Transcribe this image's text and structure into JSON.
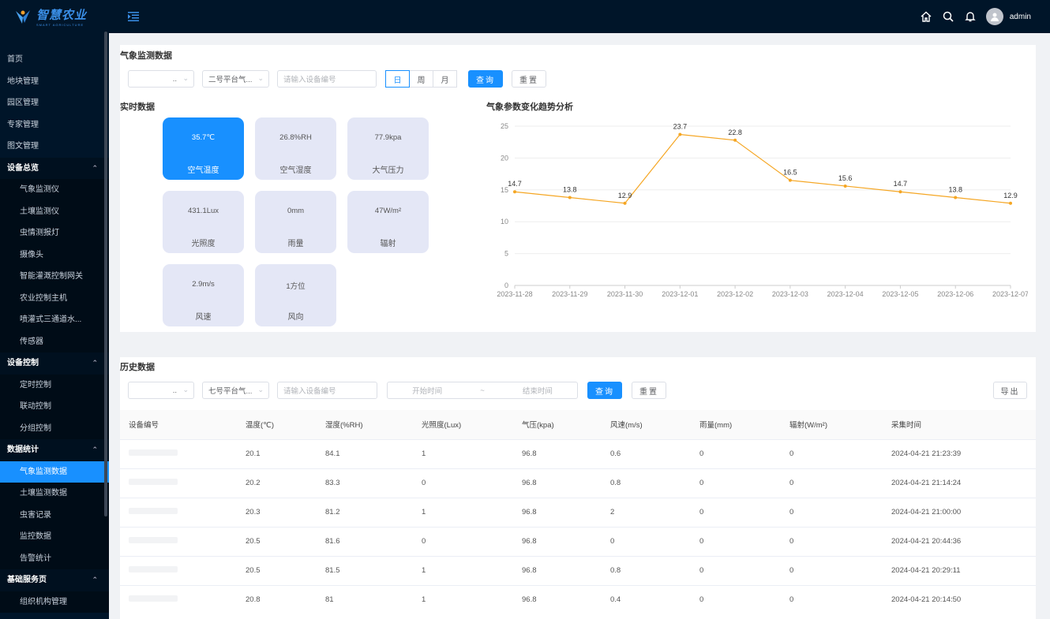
{
  "app": {
    "logo_title": "智慧农业",
    "logo_sub": "SMART AGRICULTURE",
    "user": "admin"
  },
  "sidebar": {
    "items": [
      {
        "label": "首页",
        "type": "item"
      },
      {
        "label": "地块管理",
        "type": "item"
      },
      {
        "label": "园区管理",
        "type": "item"
      },
      {
        "label": "专家管理",
        "type": "item"
      },
      {
        "label": "图文管理",
        "type": "item"
      },
      {
        "label": "设备总览",
        "type": "group"
      },
      {
        "label": "气象监测仪",
        "type": "sub"
      },
      {
        "label": "土壤监测仪",
        "type": "sub"
      },
      {
        "label": "虫情测报灯",
        "type": "sub"
      },
      {
        "label": "摄像头",
        "type": "sub"
      },
      {
        "label": "智能灌溉控制网关",
        "type": "sub"
      },
      {
        "label": "农业控制主机",
        "type": "sub"
      },
      {
        "label": "喷灌式三通道水...",
        "type": "sub"
      },
      {
        "label": "传感器",
        "type": "sub"
      },
      {
        "label": "设备控制",
        "type": "group"
      },
      {
        "label": "定时控制",
        "type": "sub"
      },
      {
        "label": "联动控制",
        "type": "sub"
      },
      {
        "label": "分组控制",
        "type": "sub"
      },
      {
        "label": "数据统计",
        "type": "group"
      },
      {
        "label": "气象监测数据",
        "type": "sub",
        "active": true
      },
      {
        "label": "土壤监测数据",
        "type": "sub"
      },
      {
        "label": "虫害记录",
        "type": "sub"
      },
      {
        "label": "监控数据",
        "type": "sub"
      },
      {
        "label": "告警统计",
        "type": "sub"
      },
      {
        "label": "基础服务页",
        "type": "group"
      },
      {
        "label": "组织机构管理",
        "type": "sub"
      }
    ]
  },
  "top": {
    "title": "气象监测数据",
    "select1": "..",
    "select2": "二号平台气...",
    "device_placeholder": "请输入设备编号",
    "seg": [
      "日",
      "周",
      "月"
    ],
    "query": "查询",
    "reset": "重置",
    "realtime_title": "实时数据",
    "cards": [
      {
        "value": "35.7℃",
        "label": "空气温度",
        "active": true
      },
      {
        "value": "26.8%RH",
        "label": "空气湿度"
      },
      {
        "value": "77.9kpa",
        "label": "大气压力"
      },
      {
        "value": "431.1Lux",
        "label": "光照度"
      },
      {
        "value": "0mm",
        "label": "雨量"
      },
      {
        "value": "47W/m²",
        "label": "辐射"
      },
      {
        "value": "2.9m/s",
        "label": "风速"
      },
      {
        "value": "1方位",
        "label": "风向"
      }
    ]
  },
  "chart_data": {
    "type": "line",
    "title": "气象参数变化趋势分析",
    "x": [
      "2023-11-28",
      "2023-11-29",
      "2023-11-30",
      "2023-12-01",
      "2023-12-02",
      "2023-12-03",
      "2023-12-04",
      "2023-12-05",
      "2023-12-06",
      "2023-12-07"
    ],
    "values": [
      14.7,
      13.8,
      12.9,
      23.7,
      22.8,
      16.5,
      15.6,
      14.7,
      13.8,
      12.9
    ],
    "ylim": [
      0,
      25
    ],
    "yticks": [
      0,
      5,
      10,
      15,
      20,
      25
    ],
    "color": "#f5a623",
    "grid": true
  },
  "history": {
    "title": "历史数据",
    "select1": "..",
    "select2": "七号平台气...",
    "device_placeholder": "请输入设备编号",
    "start_placeholder": "开始时间",
    "range_sep": "~",
    "end_placeholder": "结束时间",
    "query": "查询",
    "reset": "重置",
    "export": "导出",
    "columns": [
      "设备编号",
      "温度(℃)",
      "湿度(%RH)",
      "光照度(Lux)",
      "气压(kpa)",
      "风速(m/s)",
      "雨量(mm)",
      "辐射(W/m²)",
      "采集时间"
    ],
    "rows": [
      [
        "",
        "20.1",
        "84.1",
        "1",
        "96.8",
        "0.6",
        "0",
        "0",
        "2024-04-21 21:23:39"
      ],
      [
        "",
        "20.2",
        "83.3",
        "0",
        "96.8",
        "0.8",
        "0",
        "0",
        "2024-04-21 21:14:24"
      ],
      [
        "",
        "20.3",
        "81.2",
        "1",
        "96.8",
        "2",
        "0",
        "0",
        "2024-04-21 21:00:00"
      ],
      [
        "",
        "20.5",
        "81.6",
        "0",
        "96.8",
        "0",
        "0",
        "0",
        "2024-04-21 20:44:36"
      ],
      [
        "",
        "20.5",
        "81.5",
        "1",
        "96.8",
        "0.8",
        "0",
        "0",
        "2024-04-21 20:29:11"
      ],
      [
        "",
        "20.8",
        "81",
        "1",
        "96.8",
        "0.4",
        "0",
        "0",
        "2024-04-21 20:14:50"
      ]
    ]
  }
}
